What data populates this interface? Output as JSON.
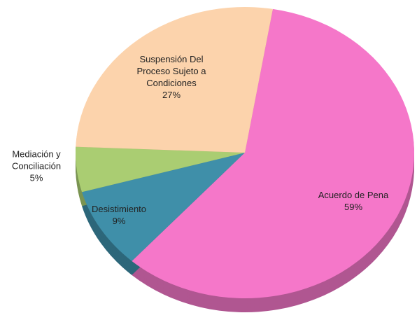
{
  "chart_data": {
    "type": "pie",
    "categories": [
      "Acuerdo de Pena",
      "Desistimiento",
      "Mediación y Conciliación",
      "Suspensión Del Proceso Sujeto a Condiciones"
    ],
    "values": [
      59,
      9,
      5,
      27
    ],
    "value_labels": [
      "59%",
      "9%",
      "5%",
      "27%"
    ],
    "colors": [
      "#f577c9",
      "#3f8fa9",
      "#aacd72",
      "#fcd3ac"
    ]
  }
}
